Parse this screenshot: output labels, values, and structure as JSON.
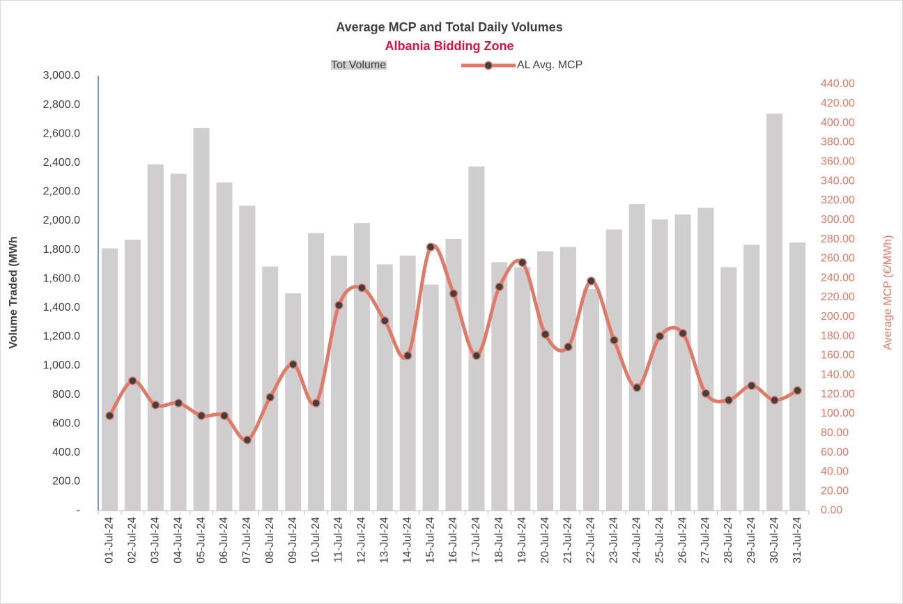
{
  "chart_data": {
    "type": "bar_line",
    "title": "Average MCP and Total Daily Volumes",
    "subtitle": "Albania Bidding Zone",
    "y_label": "Volume Traded (MWh",
    "y2_label": "Average MCP (€/MWh)",
    "categories": [
      "01-Jul-24",
      "02-Jul-24",
      "03-Jul-24",
      "04-Jul-24",
      "05-Jul-24",
      "06-Jul-24",
      "07-Jul-24",
      "08-Jul-24",
      "09-Jul-24",
      "10-Jul-24",
      "11-Jul-24",
      "12-Jul-24",
      "13-Jul-24",
      "14-Jul-24",
      "15-Jul-24",
      "16-Jul-24",
      "17-Jul-24",
      "18-Jul-24",
      "19-Jul-24",
      "20-Jul-24",
      "21-Jul-24",
      "22-Jul-24",
      "23-Jul-24",
      "24-Jul-24",
      "25-Jul-24",
      "26-Jul-24",
      "27-Jul-24",
      "28-Jul-24",
      "29-Jul-24",
      "30-Jul-24",
      "31-Jul-24"
    ],
    "series": [
      {
        "name": "Tot Volume",
        "type": "bar",
        "color": "#d0cece",
        "values": [
          1810,
          1870,
          2390,
          2325,
          2640,
          2265,
          2105,
          1685,
          1500,
          1915,
          1760,
          1985,
          1700,
          1760,
          1560,
          1875,
          2375,
          1715,
          1680,
          1790,
          1820,
          1530,
          1940,
          2115,
          2010,
          2045,
          2090,
          1680,
          1835,
          2740,
          1850
        ]
      },
      {
        "name": "AL Avg. MCP",
        "type": "line",
        "axis": "y2",
        "color": "#e07a68",
        "marker_color": "#404040",
        "values": [
          98,
          134,
          109,
          111,
          98,
          98,
          73,
          117,
          151,
          111,
          212,
          230,
          196,
          160,
          272,
          224,
          160,
          231,
          256,
          182,
          169,
          237,
          176,
          127,
          180,
          183,
          121,
          114,
          129,
          114,
          124
        ]
      }
    ],
    "ylim": [
      0,
      3000
    ],
    "yticks": [
      {
        "value": 0,
        "label": "-"
      },
      {
        "value": 200,
        "label": "200.0"
      },
      {
        "value": 400,
        "label": "400.0"
      },
      {
        "value": 600,
        "label": "600.0"
      },
      {
        "value": 800,
        "label": "800.0"
      },
      {
        "value": 1000,
        "label": "1,000.0"
      },
      {
        "value": 1200,
        "label": "1,200.0"
      },
      {
        "value": 1400,
        "label": "1,400.0"
      },
      {
        "value": 1600,
        "label": "1,600.0"
      },
      {
        "value": 1800,
        "label": "1,800.0"
      },
      {
        "value": 2000,
        "label": "2,000.0"
      },
      {
        "value": 2200,
        "label": "2,200.0"
      },
      {
        "value": 2400,
        "label": "2,400.0"
      },
      {
        "value": 2600,
        "label": "2,600.0"
      },
      {
        "value": 2800,
        "label": "2,800.0"
      },
      {
        "value": 3000,
        "label": "3,000.0"
      }
    ],
    "y2lim": [
      0,
      440
    ],
    "y2ticks": [
      {
        "value": 0,
        "label": "0.00"
      },
      {
        "value": 20,
        "label": "20.00"
      },
      {
        "value": 40,
        "label": "40.00"
      },
      {
        "value": 60,
        "label": "60.00"
      },
      {
        "value": 80,
        "label": "80.00"
      },
      {
        "value": 100,
        "label": "100.00"
      },
      {
        "value": 120,
        "label": "120.00"
      },
      {
        "value": 140,
        "label": "140.00"
      },
      {
        "value": 160,
        "label": "160.00"
      },
      {
        "value": 180,
        "label": "180.00"
      },
      {
        "value": 200,
        "label": "200.00"
      },
      {
        "value": 220,
        "label": "220.00"
      },
      {
        "value": 240,
        "label": "240.00"
      },
      {
        "value": 260,
        "label": "260.00"
      },
      {
        "value": 280,
        "label": "280.00"
      },
      {
        "value": 300,
        "label": "300.00"
      },
      {
        "value": 320,
        "label": "320.00"
      },
      {
        "value": 340,
        "label": "340.00"
      },
      {
        "value": 360,
        "label": "360.00"
      },
      {
        "value": 380,
        "label": "380.00"
      },
      {
        "value": 400,
        "label": "400.00"
      },
      {
        "value": 420,
        "label": "420.00"
      },
      {
        "value": 440,
        "label": "440.00"
      }
    ],
    "grid": false,
    "legend": "top"
  }
}
